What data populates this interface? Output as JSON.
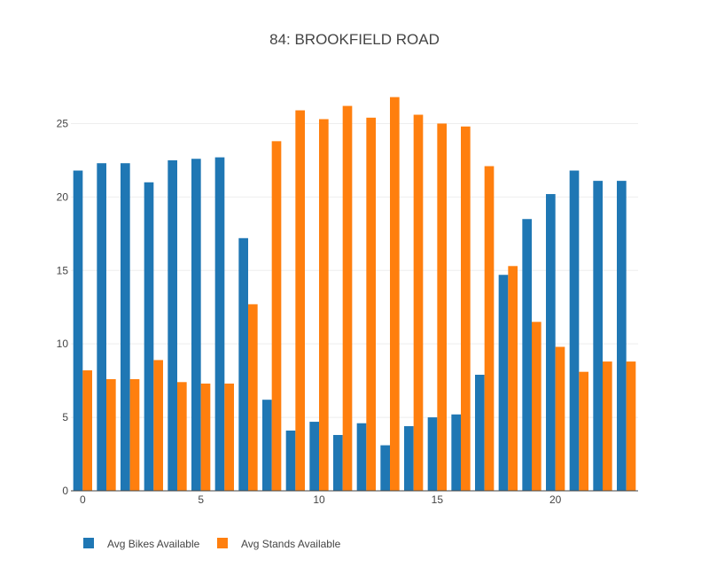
{
  "chart_data": {
    "type": "bar",
    "title": "84: BROOKFIELD ROAD",
    "xlabel": "",
    "ylabel": "",
    "x": [
      0,
      1,
      2,
      3,
      4,
      5,
      6,
      7,
      8,
      9,
      10,
      11,
      12,
      13,
      14,
      15,
      16,
      17,
      18,
      19,
      20,
      21,
      22,
      23
    ],
    "xlim": [
      -0.5,
      23.5
    ],
    "ylim": [
      0,
      27.5
    ],
    "xticks": [
      0,
      5,
      10,
      15,
      20
    ],
    "yticks": [
      0,
      5,
      10,
      15,
      20,
      25
    ],
    "grid": true,
    "legend": "bottom-left",
    "series": [
      {
        "name": "Avg Bikes Available",
        "color": "#1f77b4",
        "values": [
          21.8,
          22.3,
          22.3,
          21.0,
          22.5,
          22.6,
          22.7,
          17.2,
          6.2,
          4.1,
          4.7,
          3.8,
          4.6,
          3.1,
          4.4,
          5.0,
          5.2,
          7.9,
          14.7,
          18.5,
          20.2,
          21.8,
          21.1,
          21.1
        ]
      },
      {
        "name": "Avg Stands Available",
        "color": "#ff7f0e",
        "values": [
          8.2,
          7.6,
          7.6,
          8.9,
          7.4,
          7.3,
          7.3,
          12.7,
          23.8,
          25.9,
          25.3,
          26.2,
          25.4,
          26.8,
          25.6,
          25.0,
          24.8,
          22.1,
          15.3,
          11.5,
          9.8,
          8.1,
          8.8,
          8.8
        ]
      }
    ]
  }
}
